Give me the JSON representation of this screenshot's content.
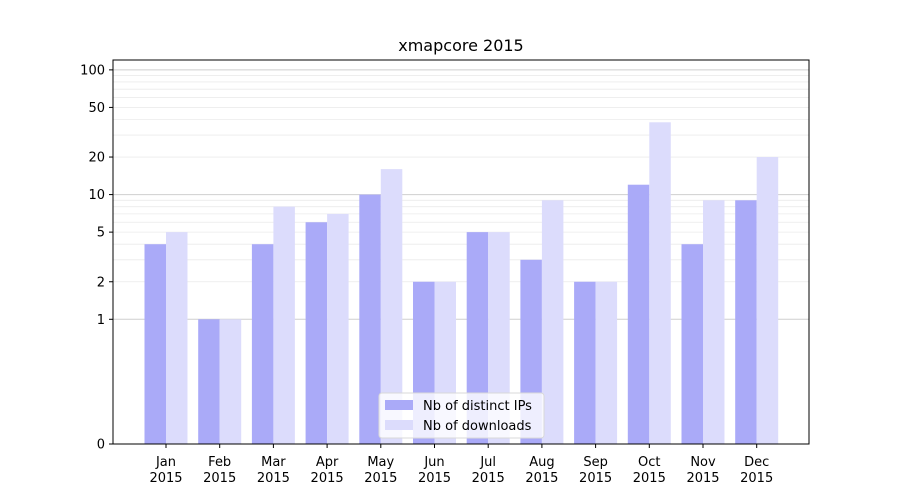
{
  "chart_data": {
    "type": "bar",
    "title": "xmapcore 2015",
    "xlabel": "",
    "ylabel": "",
    "scale": "symlog",
    "ylim": [
      0,
      120
    ],
    "yticks": [
      0,
      1,
      2,
      5,
      10,
      20,
      50,
      100
    ],
    "ytick_labels": [
      "0",
      "1",
      "2",
      "5",
      "10",
      "20",
      "50",
      "100"
    ],
    "categories": [
      [
        "Jan",
        "2015"
      ],
      [
        "Feb",
        "2015"
      ],
      [
        "Mar",
        "2015"
      ],
      [
        "Apr",
        "2015"
      ],
      [
        "May",
        "2015"
      ],
      [
        "Jun",
        "2015"
      ],
      [
        "Jul",
        "2015"
      ],
      [
        "Aug",
        "2015"
      ],
      [
        "Sep",
        "2015"
      ],
      [
        "Oct",
        "2015"
      ],
      [
        "Nov",
        "2015"
      ],
      [
        "Dec",
        "2015"
      ]
    ],
    "series": [
      {
        "name": "Nb of distinct IPs",
        "color": "#aaaaf8",
        "values": [
          4,
          1,
          4,
          6,
          10,
          2,
          5,
          3,
          2,
          12,
          4,
          9
        ]
      },
      {
        "name": "Nb of downloads",
        "color": "#dcdcfc",
        "values": [
          5,
          1,
          8,
          7,
          16,
          2,
          5,
          9,
          2,
          38,
          9,
          20
        ]
      }
    ],
    "grid": true,
    "legend_position": "bottom-center"
  }
}
